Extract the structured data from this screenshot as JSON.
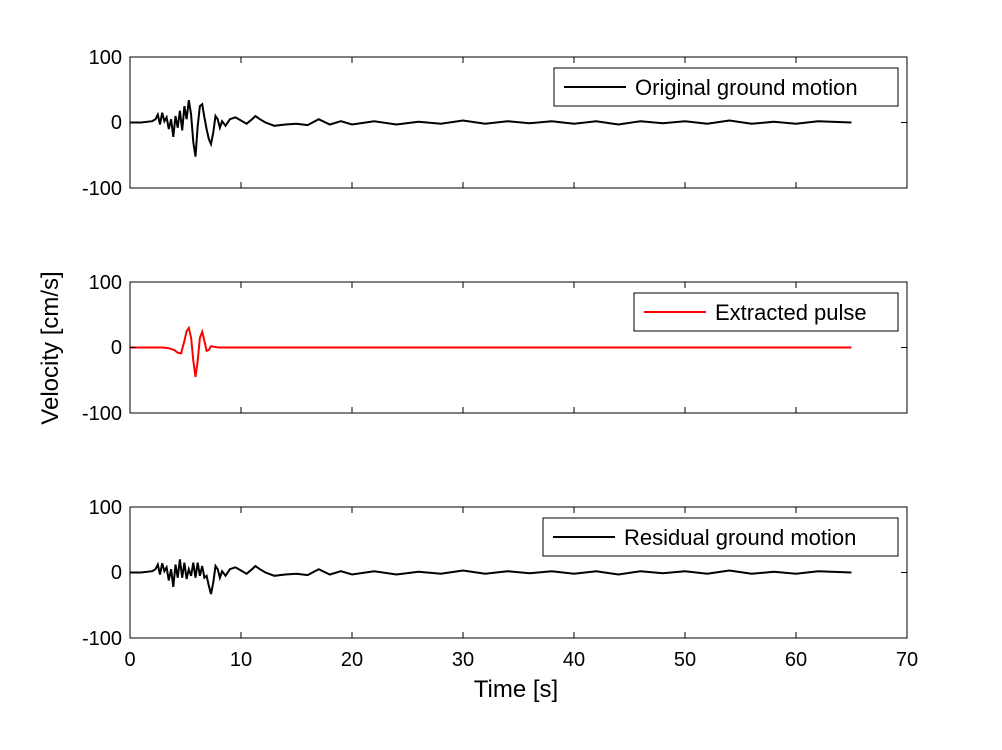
{
  "chart_data": [
    {
      "type": "line",
      "xlim": [
        0,
        70
      ],
      "ylim": [
        -100,
        100
      ],
      "yticks": [
        "100",
        "0",
        "-100"
      ],
      "legend": {
        "placement": "top-right",
        "label": "Original ground motion"
      },
      "series": [
        {
          "name": "Original ground motion",
          "color": "#000000",
          "x": [
            0,
            1,
            2,
            2.3,
            2.5,
            2.7,
            2.9,
            3.1,
            3.3,
            3.5,
            3.7,
            3.9,
            4.1,
            4.3,
            4.5,
            4.7,
            4.9,
            5.1,
            5.3,
            5.5,
            5.7,
            5.9,
            6.1,
            6.3,
            6.5,
            6.7,
            6.9,
            7.1,
            7.3,
            7.5,
            7.7,
            7.9,
            8.1,
            8.3,
            8.6,
            9,
            9.5,
            10,
            10.5,
            11,
            11.3,
            11.7,
            12.2,
            13,
            14,
            15,
            16,
            17,
            18,
            19,
            20,
            22,
            24,
            26,
            28,
            30,
            32,
            34,
            36,
            38,
            40,
            42,
            44,
            46,
            48,
            50,
            52,
            54,
            56,
            58,
            60,
            62,
            65
          ],
          "y": [
            0,
            0,
            2,
            5,
            12,
            -3,
            15,
            2,
            8,
            -10,
            5,
            -22,
            10,
            -8,
            18,
            -12,
            25,
            5,
            34,
            12,
            -30,
            -52,
            -5,
            25,
            28,
            8,
            -10,
            -25,
            -33,
            -15,
            10,
            5,
            -8,
            2,
            -5,
            5,
            8,
            3,
            -2,
            5,
            10,
            5,
            0,
            -5,
            -3,
            -2,
            -4,
            5,
            -3,
            2,
            -3,
            2,
            -3,
            1,
            -2,
            3,
            -2,
            2,
            -1,
            2,
            -2,
            2,
            -3,
            2,
            -1,
            2,
            -2,
            3,
            -2,
            1,
            -2,
            2,
            0
          ]
        }
      ]
    },
    {
      "type": "line",
      "xlim": [
        0,
        70
      ],
      "ylim": [
        -100,
        100
      ],
      "yticks": [
        "100",
        "0",
        "-100"
      ],
      "legend": {
        "placement": "top-right",
        "label": "Extracted pulse"
      },
      "series": [
        {
          "name": "Extracted pulse",
          "color": "#ff0000",
          "x": [
            0,
            3,
            3.5,
            4,
            4.3,
            4.6,
            4.9,
            5.1,
            5.3,
            5.5,
            5.7,
            5.9,
            6.1,
            6.3,
            6.5,
            6.7,
            6.9,
            7.1,
            7.3,
            7.6,
            8,
            9,
            10,
            20,
            30,
            40,
            50,
            60,
            65
          ],
          "y": [
            0,
            0,
            -1,
            -4,
            -8,
            -9,
            10,
            25,
            30,
            15,
            -20,
            -45,
            -20,
            15,
            24,
            10,
            -5,
            -4,
            2,
            1,
            0,
            0,
            0,
            0,
            0,
            0,
            0,
            0,
            0
          ]
        }
      ]
    },
    {
      "type": "line",
      "xlim": [
        0,
        70
      ],
      "ylim": [
        -100,
        100
      ],
      "yticks": [
        "100",
        "0",
        "-100"
      ],
      "legend": {
        "placement": "top-right",
        "label": "Residual ground motion"
      },
      "series": [
        {
          "name": "Residual ground motion",
          "color": "#000000",
          "x": [
            0,
            1,
            2,
            2.3,
            2.5,
            2.7,
            2.9,
            3.1,
            3.3,
            3.5,
            3.7,
            3.9,
            4.1,
            4.3,
            4.5,
            4.7,
            4.9,
            5.1,
            5.3,
            5.5,
            5.7,
            5.9,
            6.1,
            6.3,
            6.5,
            6.7,
            6.9,
            7.1,
            7.3,
            7.5,
            7.7,
            7.9,
            8.1,
            8.3,
            8.6,
            9,
            9.5,
            10,
            10.5,
            11,
            11.3,
            11.7,
            12.2,
            13,
            14,
            15,
            16,
            17,
            18,
            19,
            20,
            22,
            24,
            26,
            28,
            30,
            32,
            34,
            36,
            38,
            40,
            42,
            44,
            46,
            48,
            50,
            52,
            54,
            56,
            58,
            60,
            62,
            65
          ],
          "y": [
            0,
            0,
            2,
            5,
            12,
            -3,
            14,
            2,
            8,
            -12,
            5,
            -22,
            12,
            -8,
            20,
            -8,
            15,
            -10,
            5,
            -5,
            15,
            -8,
            15,
            -5,
            10,
            -8,
            -5,
            -20,
            -33,
            -15,
            10,
            5,
            -8,
            2,
            -5,
            5,
            8,
            3,
            -2,
            5,
            10,
            5,
            0,
            -5,
            -3,
            -2,
            -4,
            5,
            -3,
            2,
            -3,
            2,
            -3,
            1,
            -2,
            3,
            -2,
            2,
            -1,
            2,
            -2,
            2,
            -3,
            2,
            -1,
            2,
            -2,
            3,
            -2,
            1,
            -2,
            2,
            0
          ]
        }
      ]
    }
  ],
  "axes": {
    "xticks": [
      "0",
      "10",
      "20",
      "30",
      "40",
      "50",
      "60",
      "70"
    ],
    "xlabel": "Time [s]",
    "ylabel": "Velocity [cm/s]"
  }
}
